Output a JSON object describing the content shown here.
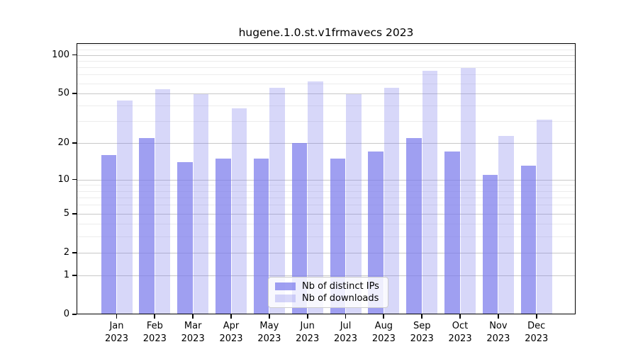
{
  "title": "hugene.1.0.st.v1frmavecs 2023",
  "chart_data": {
    "type": "bar",
    "title": "hugene.1.0.st.v1frmavecs 2023",
    "categories": [
      "Jan",
      "Feb",
      "Mar",
      "Apr",
      "May",
      "Jun",
      "Jul",
      "Aug",
      "Sep",
      "Oct",
      "Nov",
      "Dec"
    ],
    "category_year": "2023",
    "series": [
      {
        "name": "Nb of distinct IPs",
        "values": [
          16,
          22,
          14,
          15,
          15,
          20,
          15,
          17,
          22,
          17,
          11,
          13
        ],
        "color": "rgba(122,122,235,0.72)"
      },
      {
        "name": "Nb of downloads",
        "values": [
          44,
          54,
          49,
          38,
          55,
          62,
          49,
          55,
          75,
          79,
          23,
          31
        ],
        "color": "rgba(122,122,235,0.30)"
      }
    ],
    "y_axis": {
      "scale": "log10(1+y)",
      "major_ticks": [
        0,
        1,
        2,
        5,
        10,
        20,
        50,
        100
      ],
      "minor_gridlines": [
        3,
        4,
        6,
        7,
        8,
        9,
        30,
        40,
        60,
        70,
        80,
        90,
        110,
        120
      ],
      "range": [
        0,
        124
      ]
    },
    "grid": true,
    "legend_position": "lower-center"
  },
  "colors": {
    "bar_distinct_ips": "rgba(122,122,235,0.72)",
    "bar_downloads": "rgba(122,122,235,0.30)",
    "grid_major": "#c8c8c8",
    "grid_minor": "#ececec",
    "spine": "#000000",
    "background": "#ffffff",
    "legend_border": "#cccccc"
  }
}
